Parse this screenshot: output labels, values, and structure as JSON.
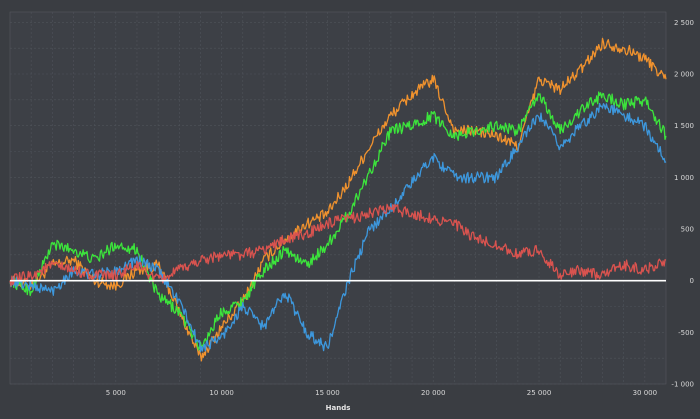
{
  "chart_data": {
    "type": "line",
    "title": "",
    "xlabel": "Hands",
    "ylabel": "",
    "xlim": [
      0,
      31000
    ],
    "ylim": [
      -1000,
      2600
    ],
    "grid": true,
    "x_ticks": [
      {
        "value": 5000,
        "label": "5 000"
      },
      {
        "value": 10000,
        "label": "10 000"
      },
      {
        "value": 15000,
        "label": "15 000"
      },
      {
        "value": 20000,
        "label": "20 000"
      },
      {
        "value": 25000,
        "label": "25 000"
      },
      {
        "value": 30000,
        "label": "30 000"
      }
    ],
    "y_ticks": [
      {
        "value": 2500,
        "label": "2 500"
      },
      {
        "value": 2000,
        "label": "2 000"
      },
      {
        "value": 1500,
        "label": "1 500"
      },
      {
        "value": 1000,
        "label": "1 000"
      },
      {
        "value": 500,
        "label": "500"
      },
      {
        "value": 0,
        "label": "0"
      },
      {
        "value": -500,
        "label": "-500"
      },
      {
        "value": -1000,
        "label": "-1 000"
      }
    ],
    "x": [
      0,
      1000,
      2000,
      3000,
      4000,
      5000,
      6000,
      7000,
      8000,
      9000,
      10000,
      11000,
      12000,
      13000,
      14000,
      15000,
      16000,
      17000,
      18000,
      19000,
      20000,
      21000,
      22000,
      23000,
      24000,
      25000,
      26000,
      27000,
      28000,
      29000,
      30000,
      31000
    ],
    "series": [
      {
        "color": "#f0922e",
        "values": [
          0,
          -50,
          150,
          200,
          0,
          -50,
          100,
          150,
          -300,
          -750,
          -450,
          -200,
          200,
          400,
          550,
          650,
          950,
          1300,
          1600,
          1800,
          1950,
          1450,
          1450,
          1400,
          1300,
          1950,
          1850,
          2050,
          2300,
          2250,
          2150,
          1950
        ]
      },
      {
        "color": "#3ce43c",
        "values": [
          0,
          -100,
          350,
          300,
          200,
          350,
          300,
          -150,
          -300,
          -650,
          -300,
          -200,
          100,
          300,
          150,
          350,
          650,
          1050,
          1450,
          1500,
          1600,
          1400,
          1450,
          1500,
          1450,
          1800,
          1450,
          1650,
          1800,
          1700,
          1750,
          1400
        ]
      },
      {
        "color": "#3d97dc",
        "values": [
          0,
          -50,
          -100,
          100,
          50,
          100,
          200,
          100,
          -200,
          -650,
          -550,
          -250,
          -450,
          -100,
          -500,
          -650,
          0,
          500,
          700,
          950,
          1200,
          1000,
          1000,
          1000,
          1300,
          1600,
          1300,
          1500,
          1700,
          1600,
          1500,
          1150
        ]
      },
      {
        "color": "#d9534f",
        "values": [
          0,
          50,
          150,
          100,
          50,
          50,
          150,
          0,
          100,
          200,
          250,
          250,
          300,
          400,
          450,
          550,
          600,
          650,
          700,
          650,
          600,
          550,
          400,
          350,
          250,
          300,
          50,
          100,
          50,
          150,
          100,
          200
        ]
      }
    ]
  }
}
